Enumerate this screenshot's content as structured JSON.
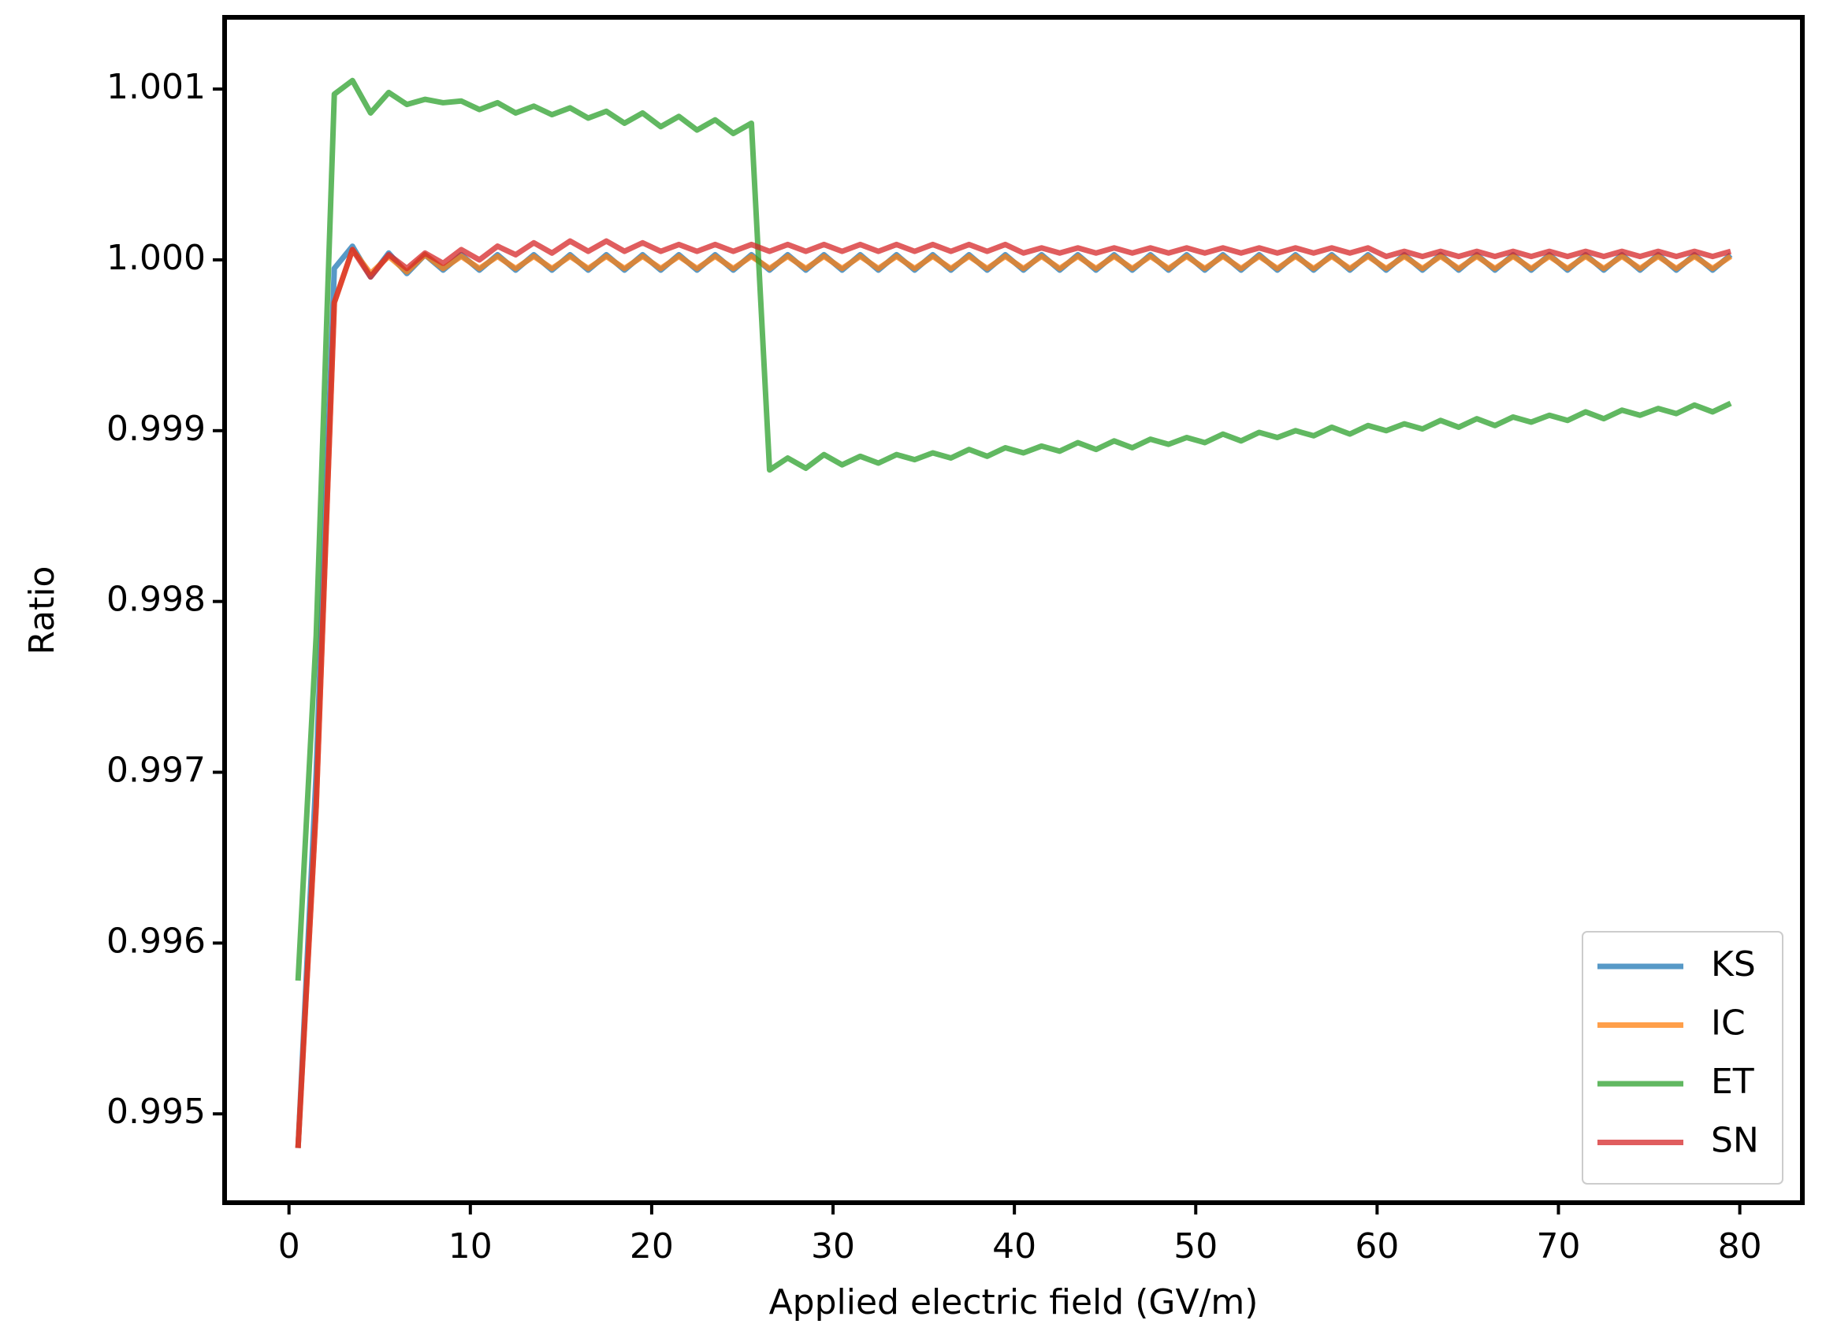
{
  "chart_data": {
    "type": "line",
    "xlabel": "Applied electric field (GV/m)",
    "ylabel": "Ratio",
    "x": [
      0.5,
      1.5,
      2.5,
      3.5,
      4.5,
      5.5,
      6.5,
      7.5,
      8.5,
      9.5,
      10.5,
      11.5,
      12.5,
      13.5,
      14.5,
      15.5,
      16.5,
      17.5,
      18.5,
      19.5,
      20.5,
      21.5,
      22.5,
      23.5,
      24.5,
      25.5,
      26.5,
      27.5,
      28.5,
      29.5,
      30.5,
      31.5,
      32.5,
      33.5,
      34.5,
      35.5,
      36.5,
      37.5,
      38.5,
      39.5,
      40.5,
      41.5,
      42.5,
      43.5,
      44.5,
      45.5,
      46.5,
      47.5,
      48.5,
      49.5,
      50.5,
      51.5,
      52.5,
      53.5,
      54.5,
      55.5,
      56.5,
      57.5,
      58.5,
      59.5,
      60.5,
      61.5,
      62.5,
      63.5,
      64.5,
      65.5,
      66.5,
      67.5,
      68.5,
      69.5,
      70.5,
      71.5,
      72.5,
      73.5,
      74.5,
      75.5,
      76.5,
      77.5,
      78.5,
      79.5
    ],
    "series": [
      {
        "name": "KS",
        "color": "#1f77b4",
        "values": [
          0.9948,
          0.997,
          0.99995,
          1.00008,
          0.9999,
          1.00004,
          0.99992,
          1.00003,
          0.99994,
          1.00003,
          0.99994,
          1.00003,
          0.99994,
          1.00003,
          0.99994,
          1.00003,
          0.99994,
          1.00003,
          0.99994,
          1.00003,
          0.99994,
          1.00003,
          0.99994,
          1.00003,
          0.99994,
          1.00003,
          0.99994,
          1.00003,
          0.99994,
          1.00003,
          0.99994,
          1.00003,
          0.99994,
          1.00003,
          0.99994,
          1.00003,
          0.99994,
          1.00003,
          0.99994,
          1.00003,
          0.99994,
          1.00003,
          0.99994,
          1.00003,
          0.99994,
          1.00003,
          0.99994,
          1.00003,
          0.99994,
          1.00003,
          0.99994,
          1.00003,
          0.99994,
          1.00003,
          0.99994,
          1.00003,
          0.99994,
          1.00003,
          0.99994,
          1.00003,
          0.99994,
          1.00003,
          0.99994,
          1.00003,
          0.99994,
          1.00003,
          0.99994,
          1.00003,
          0.99994,
          1.00003,
          0.99994,
          1.00003,
          0.99994,
          1.00003,
          0.99994,
          1.00003,
          0.99994,
          1.00003,
          0.99994,
          1.00003
        ]
      },
      {
        "name": "IC",
        "color": "#ff7f0e",
        "values": [
          0.9948,
          0.9968,
          0.99975,
          1.00006,
          0.99992,
          1.00002,
          0.99993,
          1.00003,
          0.99995,
          1.00002,
          0.99995,
          1.00002,
          0.99995,
          1.00002,
          0.99995,
          1.00002,
          0.99995,
          1.00002,
          0.99995,
          1.00002,
          0.99995,
          1.00002,
          0.99995,
          1.00002,
          0.99995,
          1.00002,
          0.99995,
          1.00002,
          0.99995,
          1.00002,
          0.99995,
          1.00002,
          0.99995,
          1.00002,
          0.99995,
          1.00002,
          0.99995,
          1.00002,
          0.99995,
          1.00002,
          0.99995,
          1.00002,
          0.99995,
          1.00002,
          0.99995,
          1.00002,
          0.99995,
          1.00002,
          0.99995,
          1.00002,
          0.99995,
          1.00002,
          0.99995,
          1.00002,
          0.99995,
          1.00002,
          0.99995,
          1.00002,
          0.99995,
          1.00002,
          0.99995,
          1.00002,
          0.99995,
          1.00002,
          0.99995,
          1.00002,
          0.99995,
          1.00002,
          0.99995,
          1.00002,
          0.99995,
          1.00002,
          0.99995,
          1.00002,
          0.99995,
          1.00002,
          0.99995,
          1.00002,
          0.99995,
          1.00002
        ]
      },
      {
        "name": "ET",
        "color": "#2ca02c",
        "values": [
          0.99578,
          0.9978,
          1.00097,
          1.00105,
          1.00086,
          1.00098,
          1.00091,
          1.00094,
          1.00092,
          1.00093,
          1.00088,
          1.00092,
          1.00086,
          1.0009,
          1.00085,
          1.00089,
          1.00083,
          1.00087,
          1.0008,
          1.00086,
          1.00078,
          1.00084,
          1.00076,
          1.00082,
          1.00074,
          1.0008,
          0.99877,
          0.99884,
          0.99878,
          0.99886,
          0.9988,
          0.99885,
          0.99881,
          0.99886,
          0.99883,
          0.99887,
          0.99884,
          0.99889,
          0.99885,
          0.9989,
          0.99887,
          0.99891,
          0.99888,
          0.99893,
          0.99889,
          0.99894,
          0.9989,
          0.99895,
          0.99892,
          0.99896,
          0.99893,
          0.99898,
          0.99894,
          0.99899,
          0.99896,
          0.999,
          0.99897,
          0.99902,
          0.99898,
          0.99903,
          0.999,
          0.99904,
          0.99901,
          0.99906,
          0.99902,
          0.99907,
          0.99903,
          0.99908,
          0.99905,
          0.99909,
          0.99906,
          0.99911,
          0.99907,
          0.99912,
          0.99909,
          0.99913,
          0.9991,
          0.99915,
          0.99911,
          0.99916
        ]
      },
      {
        "name": "SN",
        "color": "#d62728",
        "values": [
          0.9948,
          0.9968,
          0.99975,
          1.00006,
          0.9999,
          1.00003,
          0.99995,
          1.00004,
          0.99998,
          1.00006,
          1.0,
          1.00008,
          1.00003,
          1.0001,
          1.00004,
          1.00011,
          1.00005,
          1.00011,
          1.00005,
          1.0001,
          1.00005,
          1.00009,
          1.00005,
          1.00009,
          1.00005,
          1.00009,
          1.00005,
          1.00009,
          1.00005,
          1.00009,
          1.00005,
          1.00009,
          1.00005,
          1.00009,
          1.00005,
          1.00009,
          1.00005,
          1.00009,
          1.00005,
          1.00009,
          1.00004,
          1.00007,
          1.00004,
          1.00007,
          1.00004,
          1.00007,
          1.00004,
          1.00007,
          1.00004,
          1.00007,
          1.00004,
          1.00007,
          1.00004,
          1.00007,
          1.00004,
          1.00007,
          1.00004,
          1.00007,
          1.00004,
          1.00007,
          1.00002,
          1.00005,
          1.00002,
          1.00005,
          1.00002,
          1.00005,
          1.00002,
          1.00005,
          1.00002,
          1.00005,
          1.00002,
          1.00005,
          1.00002,
          1.00005,
          1.00002,
          1.00005,
          1.00002,
          1.00005,
          1.00002,
          1.00005
        ]
      }
    ],
    "xlim": [
      -3.55,
      83.45
    ],
    "xticks": [
      0,
      10,
      20,
      30,
      40,
      50,
      60,
      70,
      80
    ],
    "ylim": [
      0.99448,
      1.00142
    ],
    "yticks": [
      0.995,
      0.996,
      0.997,
      0.998,
      0.999,
      {
        "value": 1.0,
        "label": "1.000"
      },
      1.001
    ],
    "legend": "lower right",
    "grid": false
  }
}
